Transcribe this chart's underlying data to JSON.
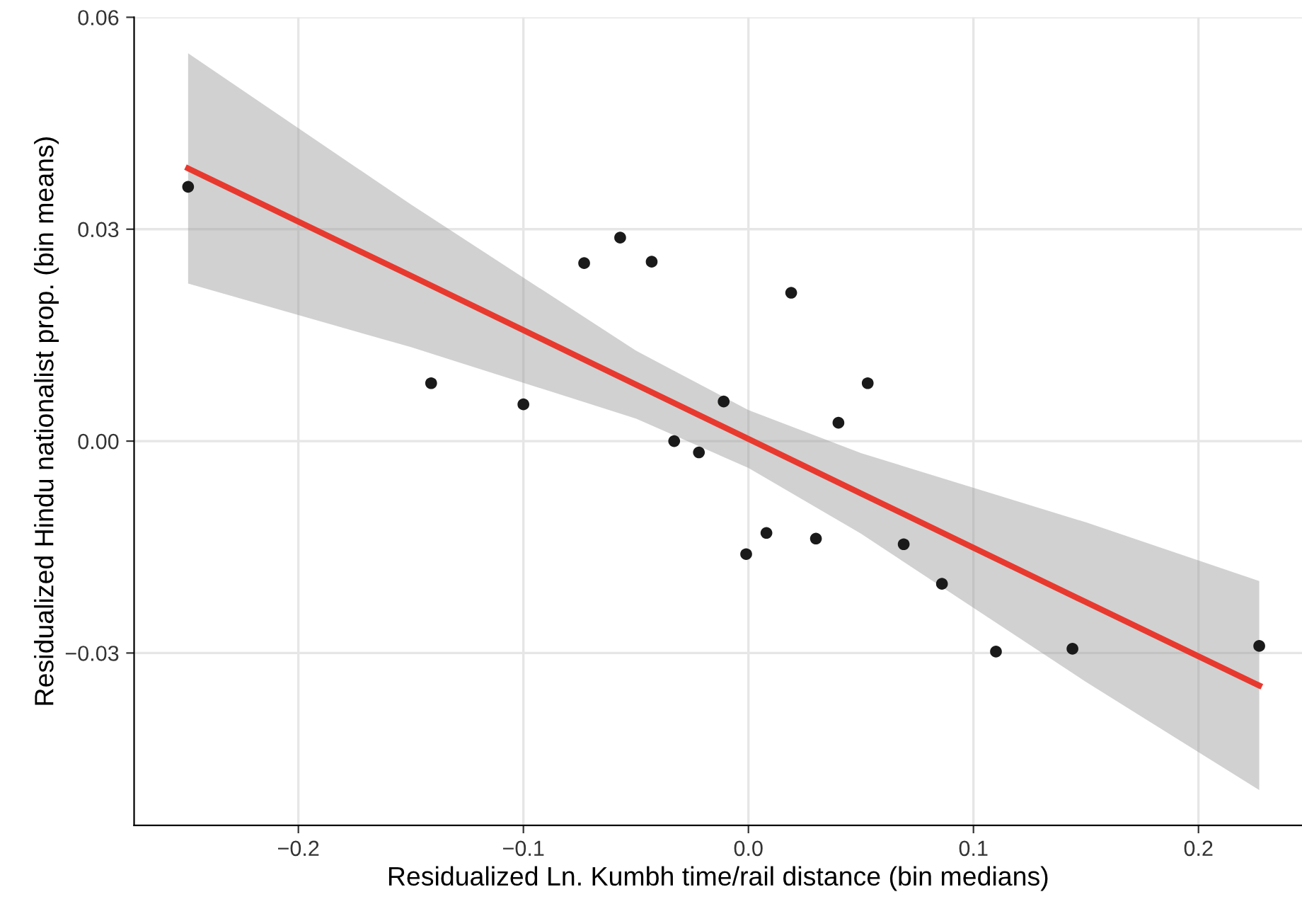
{
  "chart_data": {
    "type": "scatter",
    "xlabel": "Residualized Ln. Kumbh time/rail distance (bin medians)",
    "ylabel": "Residualized Hindu nationalist prop. (bin means)",
    "xlim": [
      -0.273,
      0.246
    ],
    "ylim": [
      -0.0544,
      0.06
    ],
    "xticks": [
      {
        "value": -0.2,
        "label": "−0.2"
      },
      {
        "value": -0.1,
        "label": "−0.1"
      },
      {
        "value": 0,
        "label": "0.0"
      },
      {
        "value": 0.1,
        "label": "0.1"
      },
      {
        "value": 0.2,
        "label": "0.2"
      }
    ],
    "yticks": [
      {
        "value": -0.03,
        "label": "−0.03"
      },
      {
        "value": 0,
        "label": "0.00"
      },
      {
        "value": 0.03,
        "label": "0.03"
      },
      {
        "value": 0.06,
        "label": "0.06"
      }
    ],
    "grid": true,
    "series": [
      {
        "type": "line",
        "marker": "none",
        "color": "#e8392f",
        "x": [
          -0.249,
          -0.15,
          -0.05,
          0,
          0.05,
          0.15,
          0.227
        ],
        "values": [
          0.0386,
          0.0234,
          0.008,
          0.0003,
          -0.0074,
          -0.0228,
          -0.0346
        ],
        "upper": [
          0.0549,
          0.0335,
          0.0128,
          0.0044,
          -0.0017,
          -0.0115,
          -0.0198
        ],
        "lower": [
          0.0223,
          0.0133,
          0.0032,
          -0.0038,
          -0.0131,
          -0.0341,
          -0.0494
        ]
      },
      {
        "marker": "circle",
        "color": "#1a1a1a",
        "x": [
          -0.249,
          -0.141,
          -0.1,
          -0.073,
          -0.057,
          -0.043,
          -0.033,
          -0.022,
          -0.011,
          -0.001,
          0.008,
          0.019,
          0.03,
          0.04,
          0.053,
          0.069,
          0.086,
          0.11,
          0.144,
          0.227
        ],
        "values": [
          0.036,
          0.0082,
          0.0052,
          0.0252,
          0.0288,
          0.0254,
          0.0,
          -0.0016,
          0.0056,
          -0.016,
          -0.013,
          0.021,
          -0.0138,
          0.0026,
          0.0082,
          -0.0146,
          -0.0202,
          -0.0298,
          -0.0294,
          -0.029
        ]
      }
    ]
  }
}
